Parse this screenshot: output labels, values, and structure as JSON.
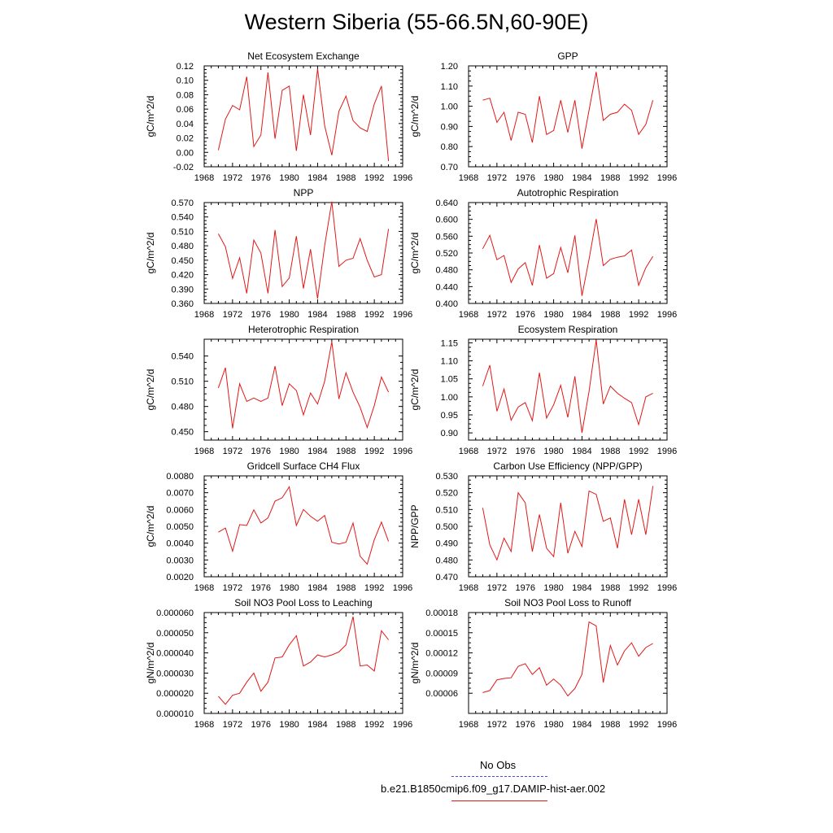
{
  "page": {
    "title": "Western Siberia (55-66.5N,60-90E)",
    "legend": [
      {
        "label": "No Obs",
        "color": "#4a4ae0",
        "style": "dashed"
      },
      {
        "label": "b.e21.B1850cmip6.f09_g17.DAMIP-hist-aer.002",
        "color": "#e01818",
        "style": "solid"
      }
    ]
  },
  "chart_data": [
    {
      "type": "line",
      "title": "Net Ecosystem Exchange",
      "ylabel": "gC/m^2/d",
      "xlim": [
        1968,
        1996
      ],
      "xticks": [
        "1968",
        "1972",
        "1976",
        "1980",
        "1984",
        "1988",
        "1992",
        "1996"
      ],
      "ylim": [
        -0.02,
        0.12
      ],
      "yticks": [
        "-0.02",
        "0.00",
        "0.02",
        "0.04",
        "0.06",
        "0.08",
        "0.10",
        "0.12"
      ],
      "x": [
        1970,
        1971,
        1972,
        1973,
        1974,
        1975,
        1976,
        1977,
        1978,
        1979,
        1980,
        1981,
        1982,
        1983,
        1984,
        1985,
        1986,
        1987,
        1988,
        1989,
        1990,
        1991,
        1992,
        1993,
        1994
      ],
      "series": [
        {
          "color": "#e01818",
          "values": [
            0.003,
            0.046,
            0.065,
            0.059,
            0.105,
            0.008,
            0.024,
            0.111,
            0.019,
            0.086,
            0.092,
            0.002,
            0.08,
            0.024,
            0.116,
            0.037,
            -0.004,
            0.057,
            0.078,
            0.044,
            0.034,
            0.029,
            0.067,
            0.092,
            -0.012
          ]
        }
      ]
    },
    {
      "type": "line",
      "title": "GPP",
      "ylabel": "gC/m^2/d",
      "xlim": [
        1968,
        1996
      ],
      "xticks": [
        "1968",
        "1972",
        "1976",
        "1980",
        "1984",
        "1988",
        "1992",
        "1996"
      ],
      "ylim": [
        0.7,
        1.2
      ],
      "yticks": [
        "0.70",
        "0.80",
        "0.90",
        "1.00",
        "1.10",
        "1.20"
      ],
      "x": [
        1970,
        1971,
        1972,
        1973,
        1974,
        1975,
        1976,
        1977,
        1978,
        1979,
        1980,
        1981,
        1982,
        1983,
        1984,
        1985,
        1986,
        1987,
        1988,
        1989,
        1990,
        1991,
        1992,
        1993,
        1994
      ],
      "series": [
        {
          "color": "#e01818",
          "values": [
            1.03,
            1.04,
            0.92,
            0.97,
            0.83,
            0.97,
            0.96,
            0.82,
            1.05,
            0.86,
            0.88,
            1.03,
            0.87,
            1.03,
            0.79,
            0.98,
            1.17,
            0.93,
            0.96,
            0.97,
            1.01,
            0.98,
            0.86,
            0.91,
            1.03
          ]
        }
      ]
    },
    {
      "type": "line",
      "title": "NPP",
      "ylabel": "gC/m^2/d",
      "xlim": [
        1968,
        1996
      ],
      "xticks": [
        "1968",
        "1972",
        "1976",
        "1980",
        "1984",
        "1988",
        "1992",
        "1996"
      ],
      "ylim": [
        0.36,
        0.57
      ],
      "yticks": [
        "0.360",
        "0.390",
        "0.420",
        "0.450",
        "0.480",
        "0.510",
        "0.540",
        "0.570"
      ],
      "x": [
        1970,
        1971,
        1972,
        1973,
        1974,
        1975,
        1976,
        1977,
        1978,
        1979,
        1980,
        1981,
        1982,
        1983,
        1984,
        1985,
        1986,
        1987,
        1988,
        1989,
        1990,
        1991,
        1992,
        1993,
        1994
      ],
      "series": [
        {
          "color": "#e01818",
          "values": [
            0.505,
            0.478,
            0.412,
            0.455,
            0.381,
            0.492,
            0.465,
            0.381,
            0.513,
            0.395,
            0.413,
            0.5,
            0.391,
            0.473,
            0.37,
            0.48,
            0.572,
            0.437,
            0.45,
            0.454,
            0.495,
            0.45,
            0.415,
            0.42,
            0.515
          ]
        }
      ]
    },
    {
      "type": "line",
      "title": "Autotrophic Respiration",
      "ylabel": "gC/m^2/d",
      "xlim": [
        1968,
        1996
      ],
      "xticks": [
        "1968",
        "1972",
        "1976",
        "1980",
        "1984",
        "1988",
        "1992",
        "1996"
      ],
      "ylim": [
        0.4,
        0.64
      ],
      "yticks": [
        "0.400",
        "0.440",
        "0.480",
        "0.520",
        "0.560",
        "0.600",
        "0.640"
      ],
      "x": [
        1970,
        1971,
        1972,
        1973,
        1974,
        1975,
        1976,
        1977,
        1978,
        1979,
        1980,
        1981,
        1982,
        1983,
        1984,
        1985,
        1986,
        1987,
        1988,
        1989,
        1990,
        1991,
        1992,
        1993,
        1994
      ],
      "series": [
        {
          "color": "#e01818",
          "values": [
            0.53,
            0.562,
            0.504,
            0.514,
            0.45,
            0.482,
            0.497,
            0.443,
            0.539,
            0.46,
            0.471,
            0.533,
            0.473,
            0.562,
            0.418,
            0.505,
            0.601,
            0.49,
            0.505,
            0.51,
            0.513,
            0.527,
            0.443,
            0.485,
            0.512
          ]
        }
      ]
    },
    {
      "type": "line",
      "title": "Heterotrophic Respiration",
      "ylabel": "gC/m^2/d",
      "xlim": [
        1968,
        1996
      ],
      "xticks": [
        "1968",
        "1972",
        "1976",
        "1980",
        "1984",
        "1988",
        "1992",
        "1996"
      ],
      "ylim": [
        0.44,
        0.56
      ],
      "yticks": [
        "0.450",
        "0.480",
        "0.510",
        "0.540"
      ],
      "x": [
        1970,
        1971,
        1972,
        1973,
        1974,
        1975,
        1976,
        1977,
        1978,
        1979,
        1980,
        1981,
        1982,
        1983,
        1984,
        1985,
        1986,
        1987,
        1988,
        1989,
        1990,
        1991,
        1992,
        1993,
        1994
      ],
      "series": [
        {
          "color": "#e01818",
          "values": [
            0.502,
            0.526,
            0.454,
            0.507,
            0.486,
            0.49,
            0.486,
            0.49,
            0.528,
            0.481,
            0.507,
            0.499,
            0.47,
            0.496,
            0.483,
            0.51,
            0.557,
            0.489,
            0.52,
            0.497,
            0.479,
            0.455,
            0.481,
            0.515,
            0.497
          ]
        }
      ]
    },
    {
      "type": "line",
      "title": "Ecosystem Respiration",
      "ylabel": "gC/m^2/d",
      "xlim": [
        1968,
        1996
      ],
      "xticks": [
        "1968",
        "1972",
        "1976",
        "1980",
        "1984",
        "1988",
        "1992",
        "1996"
      ],
      "ylim": [
        0.88,
        1.16
      ],
      "yticks": [
        "0.90",
        "0.95",
        "1.00",
        "1.05",
        "1.10",
        "1.15"
      ],
      "x": [
        1970,
        1971,
        1972,
        1973,
        1974,
        1975,
        1976,
        1977,
        1978,
        1979,
        1980,
        1981,
        1982,
        1983,
        1984,
        1985,
        1986,
        1987,
        1988,
        1989,
        1990,
        1991,
        1992,
        1993,
        1994
      ],
      "series": [
        {
          "color": "#e01818",
          "values": [
            1.03,
            1.088,
            0.96,
            1.022,
            0.935,
            0.972,
            0.984,
            0.934,
            1.067,
            0.941,
            0.978,
            1.032,
            0.943,
            1.057,
            0.9,
            1.015,
            1.158,
            0.98,
            1.03,
            1.01,
            0.996,
            0.984,
            0.923,
            1.0,
            1.01
          ]
        }
      ]
    },
    {
      "type": "line",
      "title": "Gridcell Surface CH4 Flux",
      "ylabel": "gC/m^2/d",
      "xlim": [
        1968,
        1996
      ],
      "xticks": [
        "1968",
        "1972",
        "1976",
        "1980",
        "1984",
        "1988",
        "1992",
        "1996"
      ],
      "ylim": [
        0.002,
        0.008
      ],
      "yticks": [
        "0.0020",
        "0.0030",
        "0.0040",
        "0.0050",
        "0.0060",
        "0.0070",
        "0.0080"
      ],
      "x": [
        1970,
        1971,
        1972,
        1973,
        1974,
        1975,
        1976,
        1977,
        1978,
        1979,
        1980,
        1981,
        1982,
        1983,
        1984,
        1985,
        1986,
        1987,
        1988,
        1989,
        1990,
        1991,
        1992,
        1993,
        1994
      ],
      "series": [
        {
          "color": "#e01818",
          "values": [
            0.00465,
            0.0049,
            0.00352,
            0.0051,
            0.00505,
            0.00598,
            0.0052,
            0.0055,
            0.0065,
            0.0067,
            0.00735,
            0.00505,
            0.006,
            0.0056,
            0.0053,
            0.00565,
            0.00405,
            0.00395,
            0.00405,
            0.0052,
            0.00322,
            0.00275,
            0.0042,
            0.00525,
            0.0041
          ]
        }
      ]
    },
    {
      "type": "line",
      "title": "Carbon Use Efficiency (NPP/GPP)",
      "ylabel": "NPP/GPP",
      "xlim": [
        1968,
        1996
      ],
      "xticks": [
        "1968",
        "1972",
        "1976",
        "1980",
        "1984",
        "1988",
        "1992",
        "1996"
      ],
      "ylim": [
        0.47,
        0.53
      ],
      "yticks": [
        "0.470",
        "0.480",
        "0.490",
        "0.500",
        "0.510",
        "0.520",
        "0.530"
      ],
      "x": [
        1970,
        1971,
        1972,
        1973,
        1974,
        1975,
        1976,
        1977,
        1978,
        1979,
        1980,
        1981,
        1982,
        1983,
        1984,
        1985,
        1986,
        1987,
        1988,
        1989,
        1990,
        1991,
        1992,
        1993,
        1994
      ],
      "series": [
        {
          "color": "#e01818",
          "values": [
            0.511,
            0.489,
            0.48,
            0.493,
            0.485,
            0.52,
            0.514,
            0.485,
            0.507,
            0.487,
            0.482,
            0.514,
            0.484,
            0.497,
            0.488,
            0.521,
            0.519,
            0.503,
            0.505,
            0.487,
            0.516,
            0.495,
            0.516,
            0.495,
            0.524
          ]
        }
      ]
    },
    {
      "type": "line",
      "title": "Soil NO3 Pool Loss to Leaching",
      "ylabel": "gN/m^2/d",
      "xlim": [
        1968,
        1996
      ],
      "xticks": [
        "1968",
        "1972",
        "1976",
        "1980",
        "1984",
        "1988",
        "1992",
        "1996"
      ],
      "ylim": [
        1e-05,
        6e-05
      ],
      "yticks": [
        "0.000010",
        "0.000020",
        "0.000030",
        "0.000040",
        "0.000050",
        "0.000060"
      ],
      "x": [
        1970,
        1971,
        1972,
        1973,
        1974,
        1975,
        1976,
        1977,
        1978,
        1979,
        1980,
        1981,
        1982,
        1983,
        1984,
        1985,
        1986,
        1987,
        1988,
        1989,
        1990,
        1991,
        1992,
        1993,
        1994
      ],
      "series": [
        {
          "color": "#e01818",
          "values": [
            1.85e-05,
            1.45e-05,
            1.9e-05,
            2e-05,
            2.55e-05,
            3e-05,
            2.1e-05,
            2.55e-05,
            3.75e-05,
            3.8e-05,
            4.4e-05,
            4.85e-05,
            3.35e-05,
            3.55e-05,
            3.9e-05,
            3.8e-05,
            3.9e-05,
            4.05e-05,
            4.4e-05,
            5.8e-05,
            3.35e-05,
            3.4e-05,
            3.1e-05,
            5.1e-05,
            4.65e-05
          ]
        }
      ]
    },
    {
      "type": "line",
      "title": "Soil NO3 Pool Loss to Runoff",
      "ylabel": "gN/m^2/d",
      "xlim": [
        1968,
        1996
      ],
      "xticks": [
        "1968",
        "1972",
        "1976",
        "1980",
        "1984",
        "1988",
        "1992",
        "1996"
      ],
      "ylim": [
        3e-05,
        0.00018
      ],
      "yticks": [
        "0.00006",
        "0.00009",
        "0.00012",
        "0.00015",
        "0.00018"
      ],
      "x": [
        1970,
        1971,
        1972,
        1973,
        1974,
        1975,
        1976,
        1977,
        1978,
        1979,
        1980,
        1981,
        1982,
        1983,
        1984,
        1985,
        1986,
        1987,
        1988,
        1989,
        1990,
        1991,
        1992,
        1993,
        1994
      ],
      "series": [
        {
          "color": "#e01818",
          "values": [
            6.1e-05,
            6.4e-05,
            8e-05,
            8.2e-05,
            8.3e-05,
            0.0001,
            0.000104,
            8.8e-05,
            9.8e-05,
            7.2e-05,
            8.1e-05,
            7.2e-05,
            5.6e-05,
            6.7e-05,
            8.8e-05,
            0.000166,
            0.00016,
            7.6e-05,
            0.000131,
            0.000102,
            0.000123,
            0.000135,
            0.000115,
            0.000128,
            0.000134
          ]
        }
      ]
    }
  ]
}
